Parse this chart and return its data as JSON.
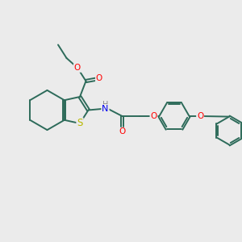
{
  "background_color": "#ebebeb",
  "bond_color": "#2d6b5a",
  "atom_colors": {
    "S": "#b8b800",
    "O": "#ff0000",
    "N": "#0000ee",
    "H": "#888888",
    "C": "#2d6b5a"
  },
  "figsize": [
    3.0,
    3.0
  ],
  "dpi": 100
}
